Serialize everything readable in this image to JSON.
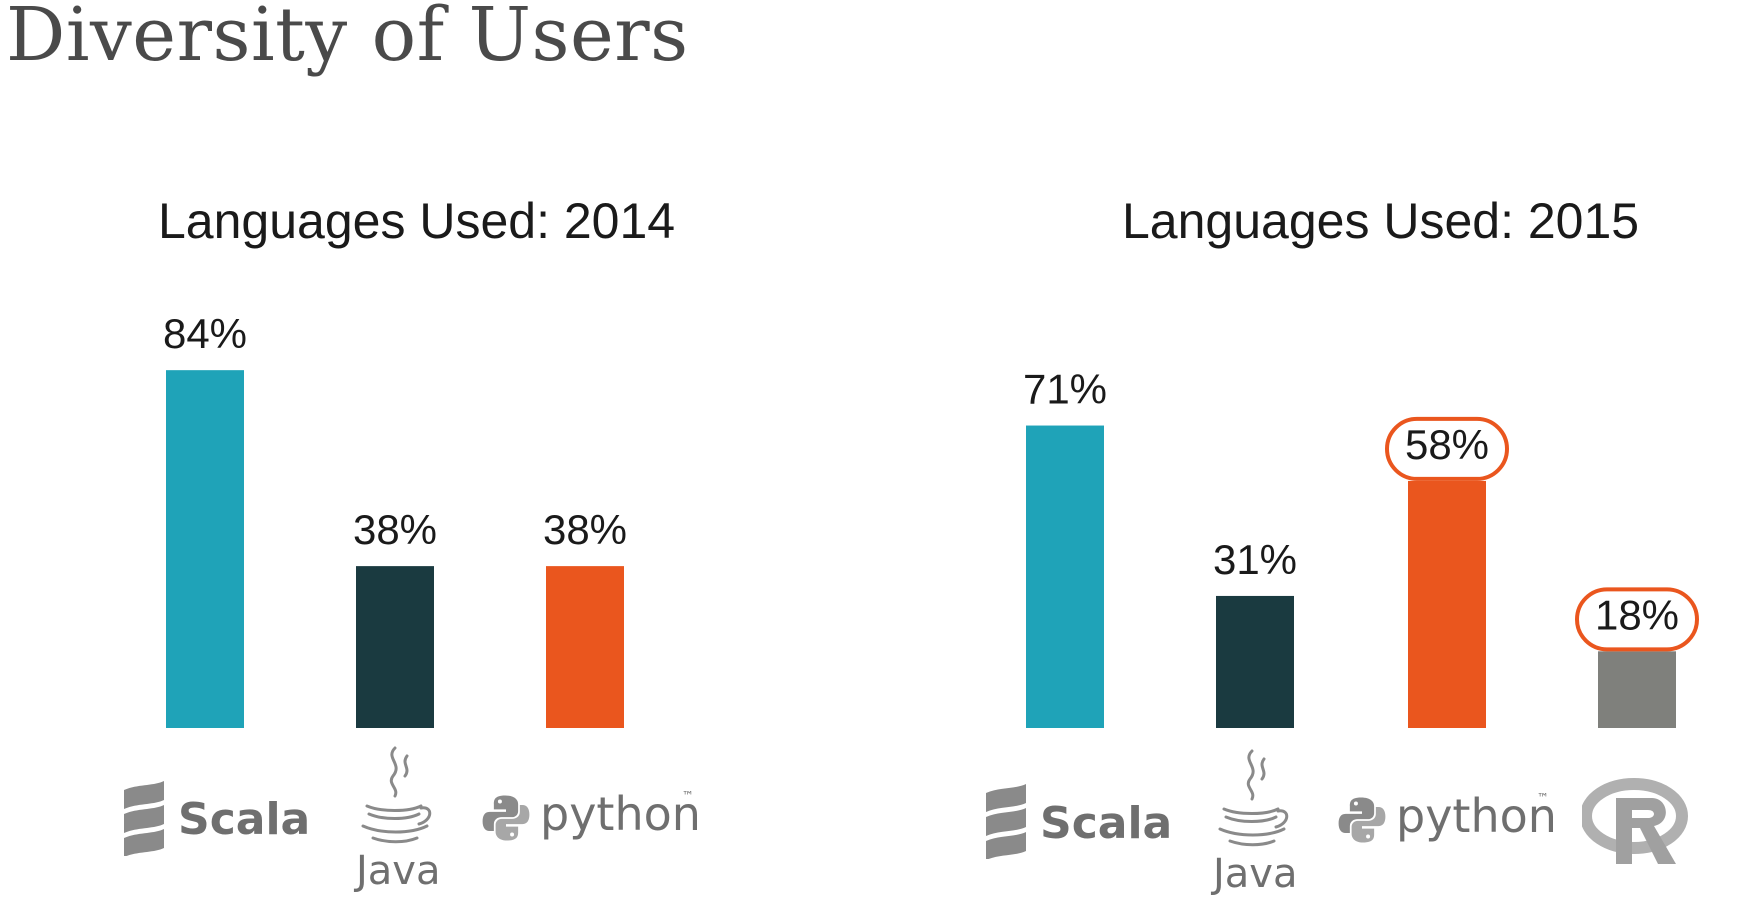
{
  "page_title": "Diversity of Users",
  "colors": {
    "scala": "#1fa3b8",
    "java": "#1a3a40",
    "python": "#ea561e",
    "r": "#7f807c",
    "highlight": "#ea561e"
  },
  "chart_data": [
    {
      "type": "bar",
      "title": "Languages Used: 2014",
      "categories": [
        "Scala",
        "Java",
        "python"
      ],
      "values": [
        84,
        38,
        38
      ],
      "data_labels": [
        "84%",
        "38%",
        "38%"
      ],
      "highlighted": [
        false,
        false,
        false
      ],
      "xlabel": "",
      "ylabel": "",
      "ylim": [
        0,
        100
      ],
      "grid": false,
      "legend": "none"
    },
    {
      "type": "bar",
      "title": "Languages Used: 2015",
      "categories": [
        "Scala",
        "Java",
        "python",
        "R"
      ],
      "values": [
        71,
        31,
        58,
        18
      ],
      "data_labels": [
        "71%",
        "31%",
        "58%",
        "18%"
      ],
      "highlighted": [
        false,
        false,
        true,
        true
      ],
      "xlabel": "",
      "ylabel": "",
      "ylim": [
        0,
        100
      ],
      "grid": false,
      "legend": "none"
    }
  ],
  "logos": {
    "scala": {
      "icon": "scala-logo-icon",
      "text": "Scala"
    },
    "java": {
      "icon": "java-cup-icon",
      "text": "Java"
    },
    "python": {
      "icon": "python-logo-icon",
      "text": "python",
      "mark": "™"
    },
    "r": {
      "icon": "r-logo-icon",
      "text": "R"
    }
  }
}
